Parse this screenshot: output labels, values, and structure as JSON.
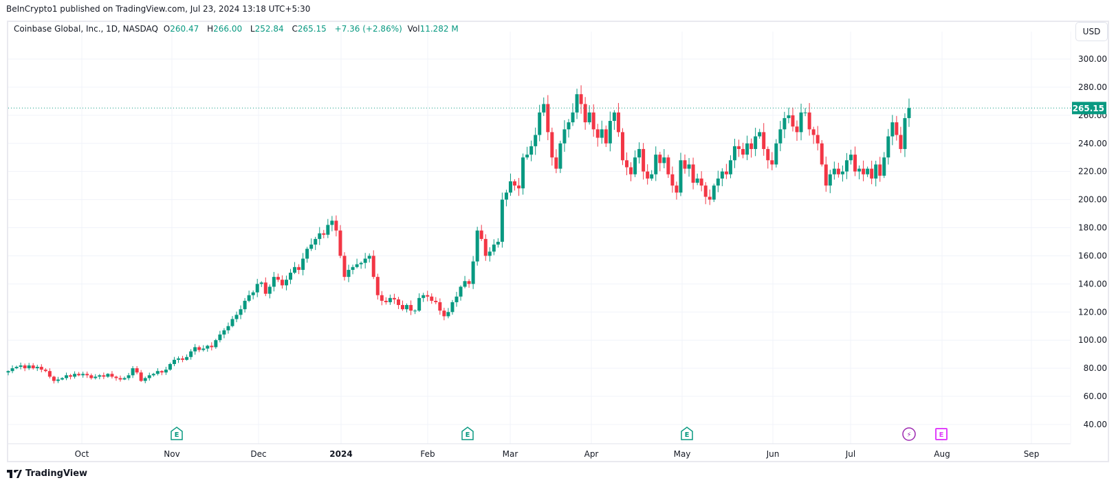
{
  "published": "BeInCrypto1 published on TradingView.com, Jul 23, 2024 13:18 UTC+5:30",
  "legend": {
    "symbol": "Coinbase Global, Inc., 1D, NASDAQ",
    "o_label": "O",
    "o": "260.47",
    "h_label": "H",
    "h": "266.00",
    "l_label": "L",
    "l": "252.84",
    "c_label": "C",
    "c": "265.15",
    "change": "+7.36 (+2.86%)",
    "vol_label": "Vol",
    "vol": "11.282 M"
  },
  "currency": "USD",
  "footer": "TradingView",
  "colors": {
    "up": "#089981",
    "down": "#f23645",
    "grid": "#f0f3fa",
    "event": "#e040fb",
    "earnings": "#089981"
  },
  "chart_data": {
    "type": "candlestick",
    "title": "Coinbase Global, Inc., 1D, NASDAQ",
    "ylim": [
      30,
      310
    ],
    "y_ticks": [
      "300.00",
      "280.00",
      "260.00",
      "240.00",
      "220.00",
      "200.00",
      "180.00",
      "160.00",
      "140.00",
      "120.00",
      "100.00",
      "80.00",
      "60.00",
      "40.00"
    ],
    "x_ticks": [
      {
        "label": "Oct",
        "bold": false
      },
      {
        "label": "Nov",
        "bold": false
      },
      {
        "label": "Dec",
        "bold": false
      },
      {
        "label": "2024",
        "bold": true
      },
      {
        "label": "Feb",
        "bold": false
      },
      {
        "label": "Mar",
        "bold": false
      },
      {
        "label": "Apr",
        "bold": false
      },
      {
        "label": "May",
        "bold": false
      },
      {
        "label": "Jun",
        "bold": false
      },
      {
        "label": "Jul",
        "bold": false
      },
      {
        "label": "Aug",
        "bold": false
      },
      {
        "label": "Sep",
        "bold": false
      }
    ],
    "last_price": "265.15",
    "start_open": 77,
    "closes": [
      78,
      80,
      81,
      82,
      80,
      82,
      80,
      81,
      79,
      78,
      74,
      71,
      72,
      73,
      75,
      74,
      76,
      75,
      76,
      75,
      73,
      74,
      75,
      74,
      76,
      74,
      73,
      72,
      73,
      75,
      80,
      77,
      71,
      73,
      75,
      76,
      78,
      77,
      79,
      83,
      86,
      87,
      86,
      88,
      92,
      95,
      93,
      94,
      96,
      95,
      100,
      104,
      107,
      110,
      115,
      118,
      122,
      128,
      132,
      134,
      140,
      141,
      133,
      138,
      145,
      143,
      139,
      143,
      148,
      152,
      150,
      158,
      165,
      168,
      172,
      176,
      175,
      182,
      185,
      178,
      160,
      145,
      150,
      152,
      154,
      155,
      158,
      160,
      145,
      132,
      128,
      127,
      130,
      129,
      125,
      122,
      125,
      121,
      121,
      130,
      132,
      131,
      128,
      127,
      121,
      117,
      120,
      127,
      131,
      138,
      142,
      140,
      156,
      178,
      172,
      160,
      163,
      168,
      170,
      200,
      205,
      213,
      210,
      208,
      230,
      232,
      238,
      246,
      262,
      268,
      248,
      230,
      222,
      240,
      250,
      255,
      262,
      275,
      268,
      255,
      262,
      250,
      244,
      250,
      240,
      256,
      262,
      248,
      228,
      223,
      218,
      230,
      236,
      220,
      215,
      218,
      232,
      226,
      230,
      218,
      210,
      205,
      228,
      222,
      225,
      212,
      215,
      210,
      202,
      200,
      210,
      215,
      220,
      218,
      228,
      238,
      236,
      232,
      240,
      236,
      245,
      248,
      236,
      228,
      225,
      240,
      250,
      258,
      260,
      252,
      248,
      262,
      262,
      250,
      246,
      240,
      225,
      210,
      218,
      222,
      218,
      220,
      228,
      232,
      220,
      222,
      218,
      222,
      215,
      225,
      217,
      230,
      245,
      255,
      246,
      236,
      258,
      265.15
    ],
    "events": [
      {
        "type": "earnings",
        "label": "E"
      },
      {
        "type": "earnings",
        "label": "E"
      },
      {
        "type": "earnings",
        "label": "E"
      },
      {
        "type": "dividend-split",
        "label": "⚡"
      },
      {
        "type": "upcoming-earnings",
        "label": "E"
      }
    ]
  }
}
